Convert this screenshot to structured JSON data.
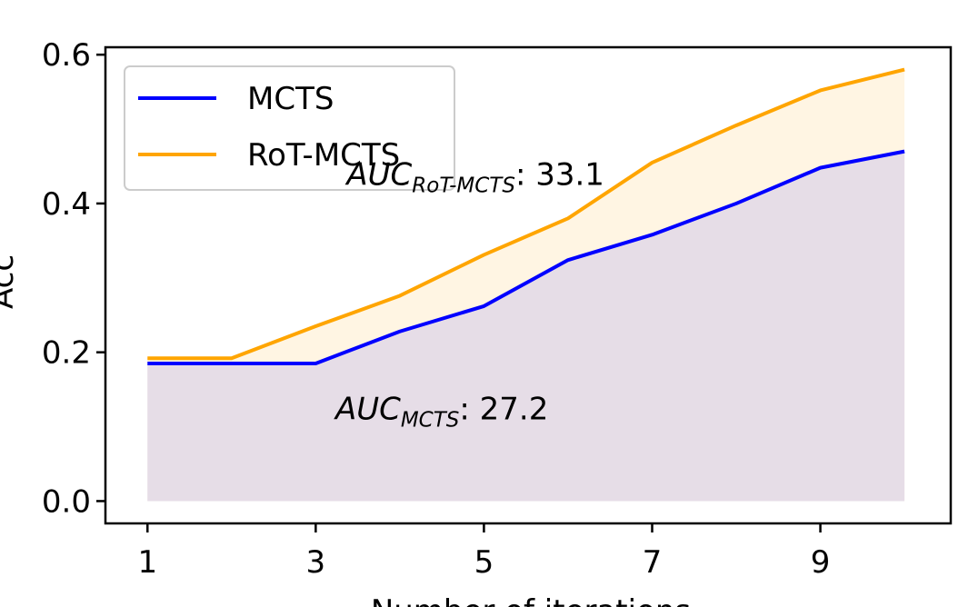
{
  "chart_data": {
    "type": "line",
    "x": [
      1,
      2,
      3,
      4,
      5,
      6,
      7,
      8,
      9,
      10
    ],
    "series": [
      {
        "name": "MCTS",
        "color": "#0000ff",
        "fill": "#e6dde7",
        "values": [
          0.185,
          0.185,
          0.185,
          0.228,
          0.262,
          0.324,
          0.358,
          0.4,
          0.448,
          0.47
        ]
      },
      {
        "name": "RoT-MCTS",
        "color": "#ffa500",
        "fill": "#fff5e3",
        "values": [
          0.192,
          0.192,
          0.235,
          0.276,
          0.331,
          0.38,
          0.455,
          0.505,
          0.552,
          0.58
        ]
      }
    ],
    "xticks": [
      "1",
      "3",
      "5",
      "7",
      "9"
    ],
    "yticks": [
      "0.0",
      "0.2",
      "0.4",
      "0.6"
    ],
    "xlim": [
      0.5,
      10.55
    ],
    "ylim": [
      -0.03,
      0.61
    ],
    "xlabel": "Number of iterations",
    "ylabel": "Acc",
    "legend_position": "top-left",
    "annotations": [
      {
        "prefix": "AUC",
        "subscript": "RoT-MCTS",
        "suffix": ": 33.1",
        "x": 4.9,
        "y": 0.425
      },
      {
        "prefix": "AUC",
        "subscript": "MCTS",
        "suffix": ": 27.2",
        "x": 4.5,
        "y": 0.11
      }
    ]
  }
}
